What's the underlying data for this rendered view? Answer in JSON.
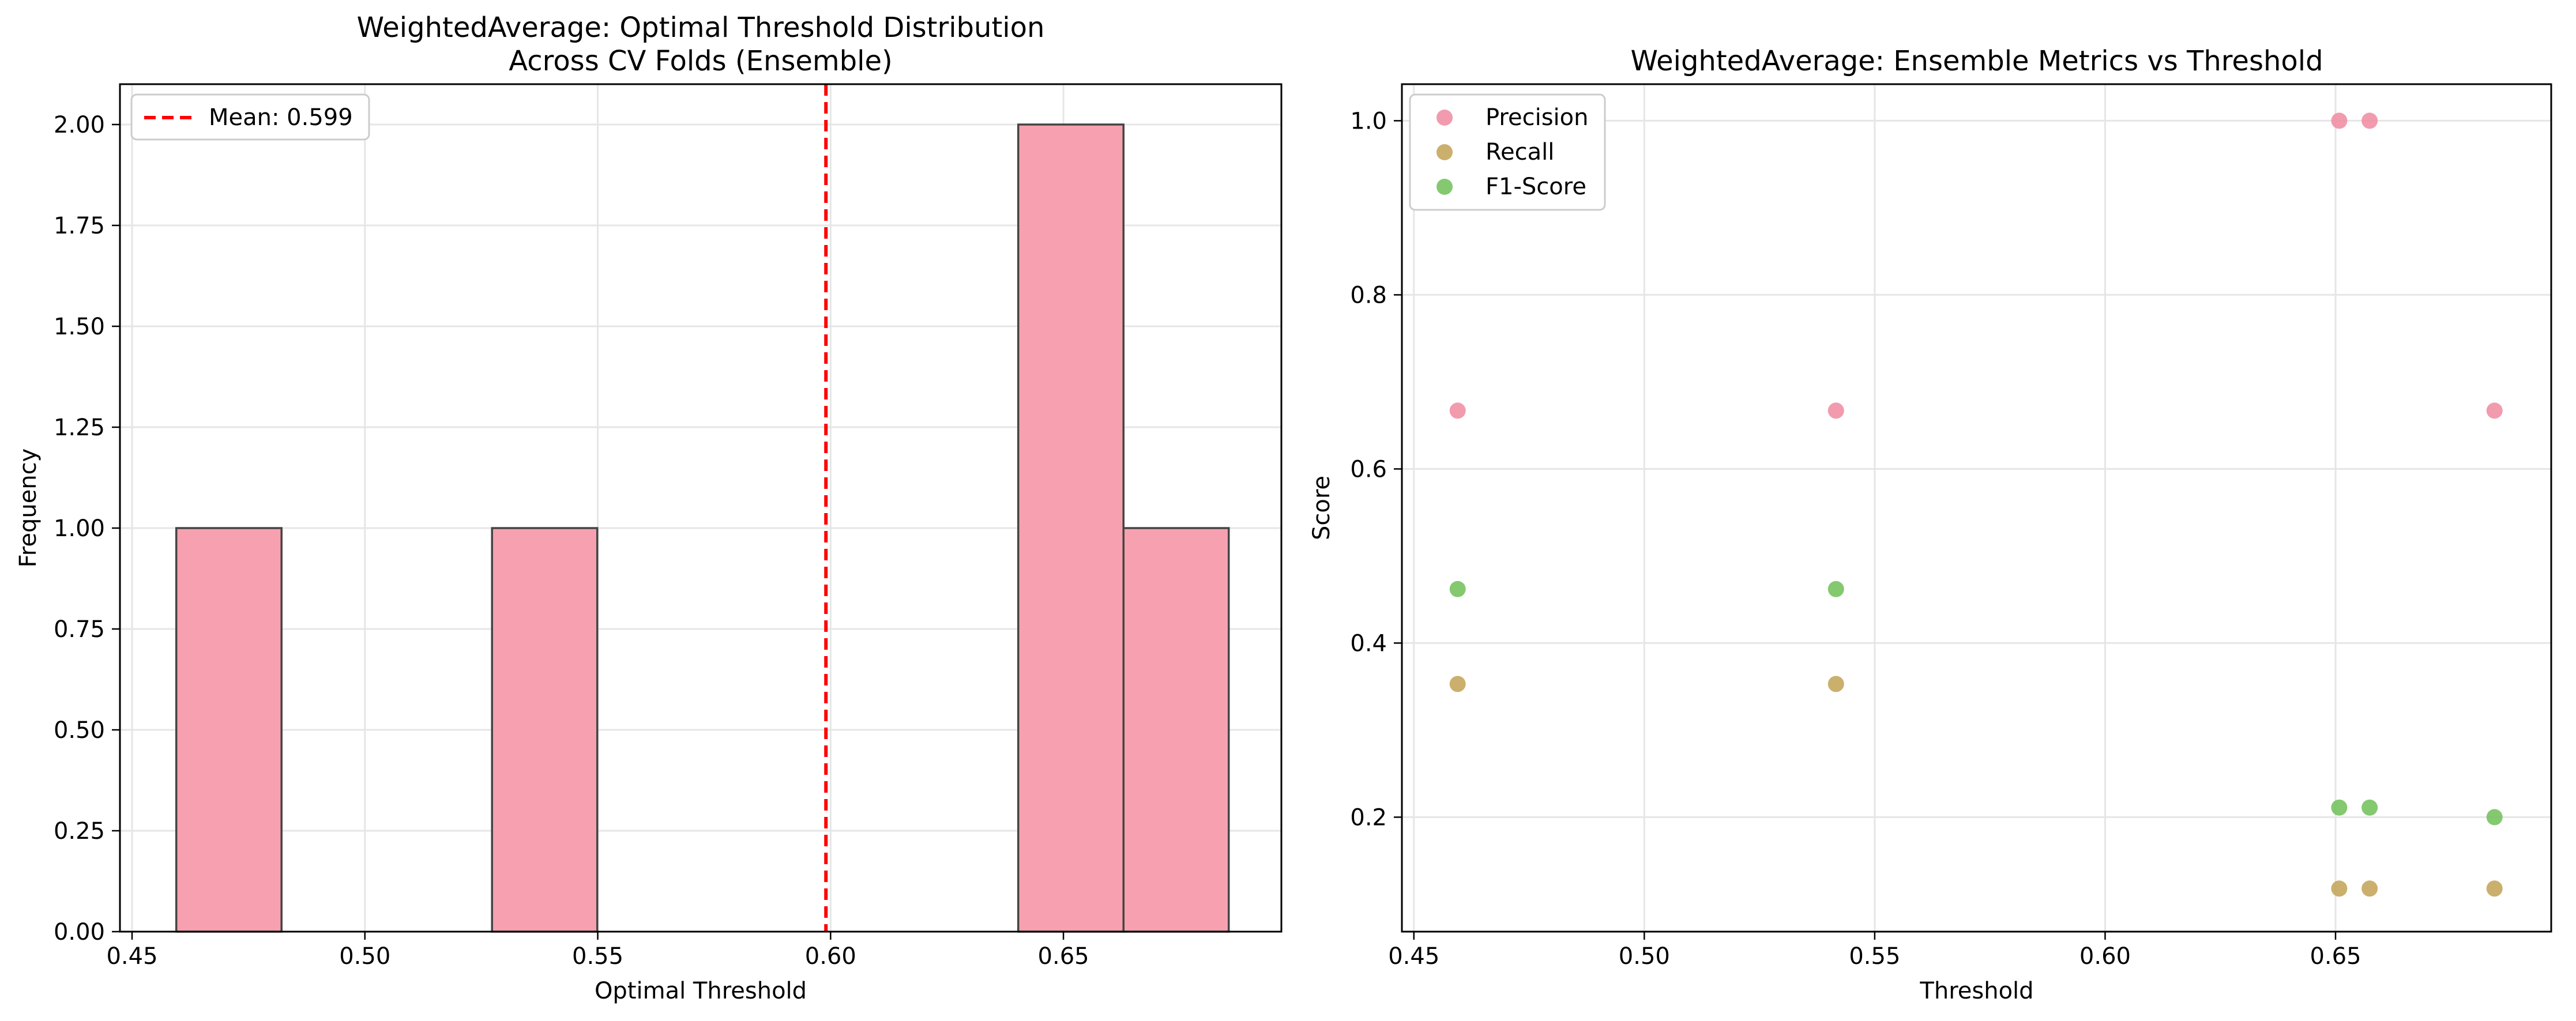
{
  "chart_data": [
    {
      "type": "bar",
      "title_lines": [
        "WeightedAverage: Optimal Threshold Distribution",
        "Across CV Folds (Ensemble)"
      ],
      "xlabel": "Optimal Threshold",
      "ylabel": "Frequency",
      "xlim": [
        0.4474,
        0.6968
      ],
      "ylim": [
        0,
        2.1
      ],
      "xticks": [
        0.45,
        0.5,
        0.55,
        0.6,
        0.65
      ],
      "xtick_labels": [
        "0.45",
        "0.50",
        "0.55",
        "0.60",
        "0.65"
      ],
      "yticks": [
        0,
        0.25,
        0.5,
        0.75,
        1.0,
        1.25,
        1.5,
        1.75,
        2.0
      ],
      "ytick_labels": [
        "0.00",
        "0.25",
        "0.50",
        "0.75",
        "1.00",
        "1.25",
        "1.50",
        "1.75",
        "2.00"
      ],
      "grid": true,
      "bar_color": "#f7a1b0",
      "bins": [
        {
          "x0": 0.4595,
          "x1": 0.4821,
          "count": 1
        },
        {
          "x0": 0.4821,
          "x1": 0.5047,
          "count": 0
        },
        {
          "x0": 0.5047,
          "x1": 0.5273,
          "count": 0
        },
        {
          "x0": 0.5273,
          "x1": 0.5499,
          "count": 1
        },
        {
          "x0": 0.5499,
          "x1": 0.5725,
          "count": 0
        },
        {
          "x0": 0.5725,
          "x1": 0.5951,
          "count": 0
        },
        {
          "x0": 0.5951,
          "x1": 0.6177,
          "count": 0
        },
        {
          "x0": 0.6177,
          "x1": 0.6403,
          "count": 0
        },
        {
          "x0": 0.6403,
          "x1": 0.6629,
          "count": 2
        },
        {
          "x0": 0.6629,
          "x1": 0.6855,
          "count": 1
        }
      ],
      "mean_line": {
        "x": 0.599,
        "label": "Mean: 0.599",
        "color": "#ff0000"
      },
      "legend_position": "upper-left"
    },
    {
      "type": "scatter",
      "title": "WeightedAverage: Ensemble Metrics vs Threshold",
      "xlabel": "Threshold",
      "ylabel": "Score",
      "xlim": [
        0.4474,
        0.6968
      ],
      "ylim": [
        0.0685,
        1.042
      ],
      "xticks": [
        0.45,
        0.5,
        0.55,
        0.6,
        0.65
      ],
      "xtick_labels": [
        "0.45",
        "0.50",
        "0.55",
        "0.60",
        "0.65"
      ],
      "yticks": [
        0.2,
        0.4,
        0.6,
        0.8,
        1.0
      ],
      "ytick_labels": [
        "0.2",
        "0.4",
        "0.6",
        "0.8",
        "1.0"
      ],
      "grid": true,
      "legend_position": "upper-left",
      "series": [
        {
          "name": "Precision",
          "color": "#f08aa0",
          "x": [
            0.4595,
            0.5416,
            0.6508,
            0.6574,
            0.6845
          ],
          "y": [
            0.667,
            0.667,
            1.0,
            1.0,
            0.667
          ]
        },
        {
          "name": "Recall",
          "color": "#c2a154",
          "x": [
            0.4595,
            0.5416,
            0.6508,
            0.6574,
            0.6845
          ],
          "y": [
            0.353,
            0.353,
            0.118,
            0.118,
            0.118
          ]
        },
        {
          "name": "F1-Score",
          "color": "#6fbf57",
          "x": [
            0.4595,
            0.5416,
            0.6508,
            0.6574,
            0.6845
          ],
          "y": [
            0.462,
            0.462,
            0.211,
            0.211,
            0.2
          ]
        }
      ]
    }
  ]
}
